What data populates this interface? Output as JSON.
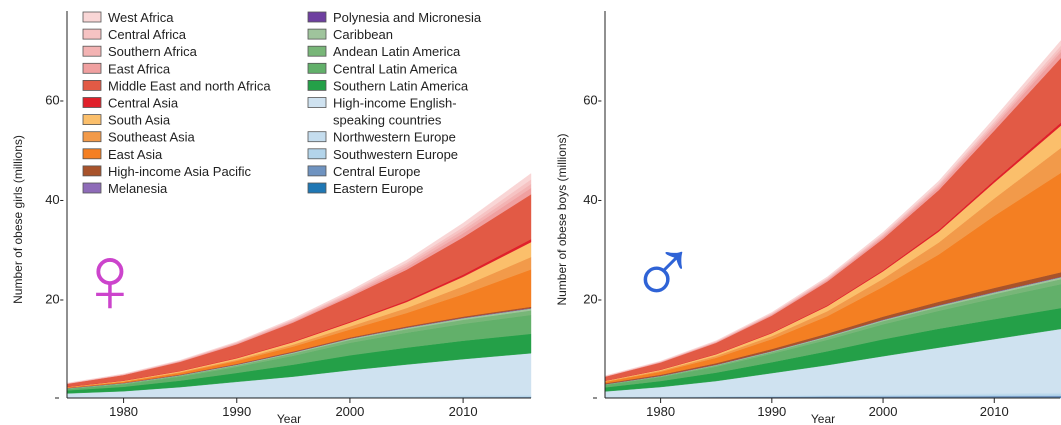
{
  "chart_data": [
    {
      "type": "area",
      "stacked": true,
      "symbol": "♀",
      "symbol_color": "#cc44cc",
      "xlabel": "Year",
      "ylabel": "Number of obese girls (millions)",
      "xlim": [
        1975,
        2016
      ],
      "ylim": [
        0,
        75
      ],
      "x_ticks": [
        1980,
        1990,
        2000,
        2010
      ],
      "y_ticks": [
        20,
        40,
        60
      ],
      "y_tick_labels": [
        "20-",
        "40-",
        "60-"
      ],
      "x": [
        1975,
        1980,
        1985,
        1990,
        1995,
        2000,
        2005,
        2010,
        2016
      ],
      "grid": false,
      "legend_position": "top",
      "series": [
        {
          "name": "Eastern Europe",
          "color": "#1f77b4",
          "values": [
            0.02,
            0.03,
            0.03,
            0.04,
            0.05,
            0.06,
            0.06,
            0.07,
            0.08
          ]
        },
        {
          "name": "Central Europe",
          "color": "#6f93c0",
          "values": [
            0.04,
            0.05,
            0.06,
            0.07,
            0.08,
            0.1,
            0.11,
            0.12,
            0.13
          ]
        },
        {
          "name": "Southwestern Europe",
          "color": "#b3d4ea",
          "values": [
            0.03,
            0.04,
            0.05,
            0.06,
            0.08,
            0.1,
            0.12,
            0.15,
            0.2
          ]
        },
        {
          "name": "Northwestern Europe",
          "color": "#c5ddee",
          "values": [
            0.03,
            0.04,
            0.06,
            0.08,
            0.1,
            0.13,
            0.15,
            0.18,
            0.2
          ]
        },
        {
          "name": "High-income English-speaking countries",
          "color": "#cfe2f0",
          "values": [
            0.8,
            1.2,
            2.0,
            3.0,
            4.0,
            5.2,
            6.3,
            7.3,
            8.4
          ]
        },
        {
          "name": "Southern Latin America",
          "color": "#24a048",
          "values": [
            0.6,
            0.9,
            1.3,
            1.8,
            2.4,
            3.0,
            3.4,
            3.7,
            3.9
          ]
        },
        {
          "name": "Central Latin America",
          "color": "#62b06a",
          "values": [
            0.3,
            0.5,
            0.8,
            1.2,
            1.8,
            2.5,
            3.0,
            3.4,
            3.8
          ]
        },
        {
          "name": "Andean Latin America",
          "color": "#78b678",
          "values": [
            0.1,
            0.15,
            0.2,
            0.3,
            0.45,
            0.6,
            0.7,
            0.8,
            0.9
          ]
        },
        {
          "name": "Caribbean",
          "color": "#9fc49c",
          "values": [
            0.05,
            0.08,
            0.1,
            0.15,
            0.2,
            0.25,
            0.3,
            0.35,
            0.4
          ]
        },
        {
          "name": "Polynesia and Micronesia",
          "color": "#6e3fa0",
          "values": [
            0.01,
            0.01,
            0.01,
            0.01,
            0.02,
            0.02,
            0.02,
            0.03,
            0.03
          ]
        },
        {
          "name": "Melanesia",
          "color": "#8e6bb8",
          "values": [
            0.01,
            0.01,
            0.02,
            0.02,
            0.03,
            0.03,
            0.04,
            0.05,
            0.06
          ]
        },
        {
          "name": "High-income Asia Pacific",
          "color": "#a8532b",
          "values": [
            0.05,
            0.07,
            0.1,
            0.12,
            0.15,
            0.18,
            0.2,
            0.22,
            0.25
          ]
        },
        {
          "name": "East Asia",
          "color": "#f47f22",
          "values": [
            0.1,
            0.2,
            0.35,
            0.6,
            1.0,
            1.6,
            2.7,
            4.5,
            7.5
          ]
        },
        {
          "name": "Southeast Asia",
          "color": "#f29a4a",
          "values": [
            0.05,
            0.1,
            0.15,
            0.25,
            0.4,
            0.6,
            1.0,
            1.6,
            2.5
          ]
        },
        {
          "name": "South Asia",
          "color": "#fbbf6b",
          "values": [
            0.05,
            0.1,
            0.18,
            0.3,
            0.5,
            0.8,
            1.2,
            1.9,
            3.0
          ]
        },
        {
          "name": "Central Asia",
          "color": "#e0202a",
          "values": [
            0.02,
            0.04,
            0.06,
            0.1,
            0.15,
            0.2,
            0.3,
            0.45,
            0.6
          ]
        },
        {
          "name": "Middle East and north Africa",
          "color": "#e25a45",
          "values": [
            0.6,
            1.1,
            1.8,
            2.7,
            3.8,
            5.0,
            6.2,
            7.5,
            9.0
          ]
        },
        {
          "name": "East Africa",
          "color": "#f0a0a0",
          "values": [
            0.03,
            0.05,
            0.08,
            0.12,
            0.2,
            0.3,
            0.5,
            0.8,
            1.3
          ]
        },
        {
          "name": "Southern Africa",
          "color": "#f3b3b3",
          "values": [
            0.05,
            0.08,
            0.12,
            0.18,
            0.25,
            0.35,
            0.5,
            0.65,
            0.8
          ]
        },
        {
          "name": "Central Africa",
          "color": "#f6c3c3",
          "values": [
            0.02,
            0.04,
            0.06,
            0.1,
            0.15,
            0.25,
            0.4,
            0.6,
            0.9
          ]
        },
        {
          "name": "West Africa",
          "color": "#f9d6d6",
          "values": [
            0.03,
            0.05,
            0.08,
            0.12,
            0.2,
            0.3,
            0.5,
            0.8,
            1.2
          ]
        }
      ]
    },
    {
      "type": "area",
      "stacked": true,
      "symbol": "♂",
      "symbol_color": "#2f63d6",
      "xlabel": "Year",
      "ylabel": "Number of obese boys (millions)",
      "xlim": [
        1975,
        2016
      ],
      "ylim": [
        0,
        75
      ],
      "x_ticks": [
        1980,
        1990,
        2000,
        2010
      ],
      "y_ticks": [
        20,
        40,
        60
      ],
      "y_tick_labels": [
        "20-",
        "40-",
        "60-"
      ],
      "x": [
        1975,
        1980,
        1985,
        1990,
        1995,
        2000,
        2005,
        2010,
        2016
      ],
      "grid": false,
      "series": [
        {
          "name": "Eastern Europe",
          "color": "#1f77b4",
          "values": [
            0.05,
            0.07,
            0.09,
            0.1,
            0.12,
            0.13,
            0.14,
            0.15,
            0.17
          ]
        },
        {
          "name": "Central Europe",
          "color": "#6f93c0",
          "values": [
            0.08,
            0.1,
            0.12,
            0.15,
            0.18,
            0.2,
            0.22,
            0.25,
            0.28
          ]
        },
        {
          "name": "Southwestern Europe",
          "color": "#b3d4ea",
          "values": [
            0.05,
            0.07,
            0.1,
            0.13,
            0.17,
            0.2,
            0.25,
            0.3,
            0.35
          ]
        },
        {
          "name": "Northwestern Europe",
          "color": "#c5ddee",
          "values": [
            0.05,
            0.07,
            0.1,
            0.12,
            0.15,
            0.18,
            0.22,
            0.25,
            0.3
          ]
        },
        {
          "name": "High-income English-speaking countries",
          "color": "#cfe2f0",
          "values": [
            1.1,
            1.9,
            3.0,
            4.5,
            6.0,
            7.7,
            9.3,
            10.9,
            12.8
          ]
        },
        {
          "name": "Southern Latin America",
          "color": "#24a048",
          "values": [
            0.8,
            1.2,
            1.7,
            2.2,
            2.8,
            3.4,
            3.8,
            4.0,
            4.2
          ]
        },
        {
          "name": "Central Latin America",
          "color": "#62b06a",
          "values": [
            0.5,
            0.8,
            1.2,
            1.7,
            2.3,
            3.0,
            3.6,
            4.2,
            4.8
          ]
        },
        {
          "name": "Andean Latin America",
          "color": "#78b678",
          "values": [
            0.1,
            0.15,
            0.25,
            0.35,
            0.5,
            0.65,
            0.75,
            0.85,
            1.0
          ]
        },
        {
          "name": "Caribbean",
          "color": "#9fc49c",
          "values": [
            0.05,
            0.08,
            0.12,
            0.16,
            0.2,
            0.25,
            0.3,
            0.35,
            0.4
          ]
        },
        {
          "name": "Polynesia and Micronesia",
          "color": "#6e3fa0",
          "values": [
            0.01,
            0.01,
            0.01,
            0.02,
            0.02,
            0.02,
            0.03,
            0.03,
            0.03
          ]
        },
        {
          "name": "Melanesia",
          "color": "#8e6bb8",
          "values": [
            0.01,
            0.01,
            0.02,
            0.02,
            0.03,
            0.04,
            0.05,
            0.06,
            0.07
          ]
        },
        {
          "name": "High-income Asia Pacific",
          "color": "#a8532b",
          "values": [
            0.15,
            0.22,
            0.3,
            0.4,
            0.5,
            0.6,
            0.7,
            0.8,
            0.9
          ]
        },
        {
          "name": "East Asia",
          "color": "#f47f22",
          "values": [
            0.3,
            0.6,
            1.1,
            2.0,
            3.5,
            6.0,
            9.5,
            14.5,
            20.0
          ]
        },
        {
          "name": "Southeast Asia",
          "color": "#f29a4a",
          "values": [
            0.1,
            0.2,
            0.35,
            0.6,
            1.0,
            1.6,
            2.4,
            3.5,
            5.0
          ]
        },
        {
          "name": "South Asia",
          "color": "#fbbf6b",
          "values": [
            0.1,
            0.2,
            0.35,
            0.6,
            1.0,
            1.5,
            2.2,
            3.2,
            4.5
          ]
        },
        {
          "name": "Central Asia",
          "color": "#e0202a",
          "values": [
            0.03,
            0.05,
            0.08,
            0.12,
            0.18,
            0.25,
            0.35,
            0.45,
            0.6
          ]
        },
        {
          "name": "Middle East and north Africa",
          "color": "#e25a45",
          "values": [
            0.8,
            1.4,
            2.2,
            3.4,
            4.8,
            6.3,
            8.0,
            10.0,
            13.0
          ]
        },
        {
          "name": "East Africa",
          "color": "#f0a0a0",
          "values": [
            0.05,
            0.08,
            0.12,
            0.18,
            0.28,
            0.4,
            0.55,
            0.8,
            1.2
          ]
        },
        {
          "name": "Southern Africa",
          "color": "#f3b3b3",
          "values": [
            0.05,
            0.08,
            0.12,
            0.16,
            0.22,
            0.3,
            0.4,
            0.5,
            0.6
          ]
        },
        {
          "name": "Central Africa",
          "color": "#f6c3c3",
          "values": [
            0.03,
            0.05,
            0.08,
            0.12,
            0.18,
            0.25,
            0.35,
            0.5,
            0.7
          ]
        },
        {
          "name": "West Africa",
          "color": "#f9d6d6",
          "values": [
            0.05,
            0.08,
            0.12,
            0.18,
            0.25,
            0.35,
            0.5,
            0.7,
            1.0
          ]
        }
      ]
    }
  ],
  "legend": {
    "column_1": [
      {
        "label": "West Africa",
        "color": "#f9d6d6"
      },
      {
        "label": "Central Africa",
        "color": "#f6c3c3"
      },
      {
        "label": "Southern Africa",
        "color": "#f3b3b3"
      },
      {
        "label": "East Africa",
        "color": "#f0a0a0"
      },
      {
        "label": "Middle East and north Africa",
        "color": "#e25a45"
      },
      {
        "label": "Central Asia",
        "color": "#e0202a"
      },
      {
        "label": "South Asia",
        "color": "#fbbf6b"
      },
      {
        "label": "Southeast Asia",
        "color": "#f29a4a"
      },
      {
        "label": "East Asia",
        "color": "#f47f22"
      },
      {
        "label": "High-income Asia Pacific",
        "color": "#a8532b"
      },
      {
        "label": "Melanesia",
        "color": "#8e6bb8"
      }
    ],
    "column_2": [
      {
        "label": "Polynesia and Micronesia",
        "color": "#6e3fa0"
      },
      {
        "label": "Caribbean",
        "color": "#9fc49c"
      },
      {
        "label": "Andean Latin America",
        "color": "#78b678"
      },
      {
        "label": "Central Latin America",
        "color": "#62b06a"
      },
      {
        "label": "Southern Latin America",
        "color": "#24a048"
      },
      {
        "label": "High-income English-",
        "label_line2": "speaking countries",
        "color": "#cfe2f0"
      },
      {
        "label": "Northwestern Europe",
        "color": "#c5ddee"
      },
      {
        "label": "Southwestern Europe",
        "color": "#b3d4ea"
      },
      {
        "label": "Central Europe",
        "color": "#6f93c0"
      },
      {
        "label": "Eastern Europe",
        "color": "#1f77b4"
      }
    ]
  }
}
